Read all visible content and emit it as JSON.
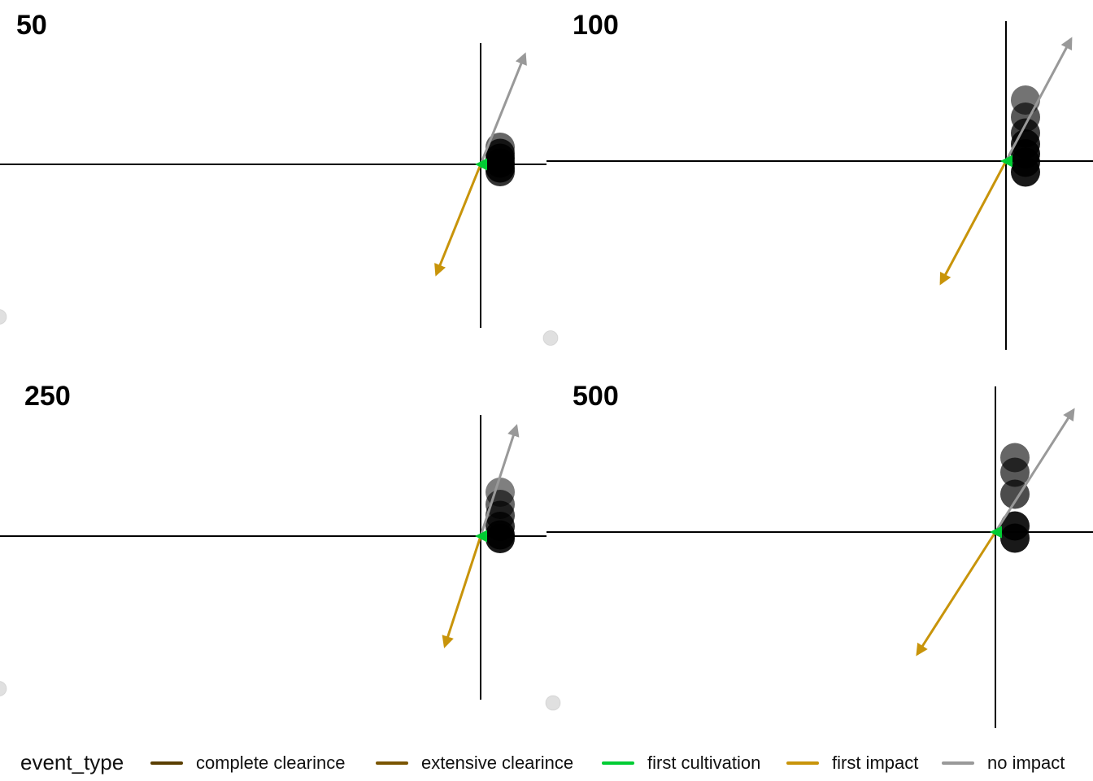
{
  "chart_data": {
    "type": "scatter",
    "panels": [
      {
        "label": "50",
        "points": [
          {
            "x": 0.3,
            "y": 0.28,
            "alpha": 0.6
          },
          {
            "x": 0.3,
            "y": 0.18,
            "alpha": 0.8
          },
          {
            "x": 0.3,
            "y": 0.1,
            "alpha": 0.9
          },
          {
            "x": 0.3,
            "y": 0.02,
            "alpha": 0.9
          },
          {
            "x": 0.3,
            "y": -0.06,
            "alpha": 0.9
          },
          {
            "x": 0.3,
            "y": -0.12,
            "alpha": 0.8
          }
        ],
        "origin_point": {
          "x": -7.4,
          "y": -2.5,
          "alpha": 0.12
        },
        "vectors": [
          {
            "event": "no impact",
            "x": 0.68,
            "y": 1.8
          },
          {
            "event": "first impact",
            "x": -0.68,
            "y": -1.8
          },
          {
            "event": "first cultivation",
            "x": -0.05,
            "y": 0.0
          }
        ]
      },
      {
        "label": "100",
        "points": [
          {
            "x": 0.3,
            "y": 1.0,
            "alpha": 0.55
          },
          {
            "x": 0.3,
            "y": 0.72,
            "alpha": 0.65
          },
          {
            "x": 0.3,
            "y": 0.46,
            "alpha": 0.75
          },
          {
            "x": 0.3,
            "y": 0.28,
            "alpha": 0.85
          },
          {
            "x": 0.3,
            "y": 0.12,
            "alpha": 0.9
          },
          {
            "x": 0.3,
            "y": -0.02,
            "alpha": 0.9
          },
          {
            "x": 0.3,
            "y": -0.18,
            "alpha": 0.9
          }
        ],
        "origin_point": {
          "x": -7.0,
          "y": -2.9,
          "alpha": 0.12
        },
        "vectors": [
          {
            "event": "no impact",
            "x": 1.0,
            "y": 2.0
          },
          {
            "event": "first impact",
            "x": -1.0,
            "y": -2.0
          },
          {
            "event": "first cultivation",
            "x": -0.05,
            "y": 0.0
          }
        ]
      },
      {
        "label": "250",
        "points": [
          {
            "x": 0.3,
            "y": 0.72,
            "alpha": 0.5
          },
          {
            "x": 0.3,
            "y": 0.52,
            "alpha": 0.6
          },
          {
            "x": 0.3,
            "y": 0.34,
            "alpha": 0.7
          },
          {
            "x": 0.3,
            "y": 0.16,
            "alpha": 0.8
          },
          {
            "x": 0.3,
            "y": 0.02,
            "alpha": 0.9
          },
          {
            "x": 0.3,
            "y": -0.04,
            "alpha": 0.9
          }
        ],
        "origin_point": {
          "x": -7.4,
          "y": -2.5,
          "alpha": 0.12
        },
        "vectors": [
          {
            "event": "no impact",
            "x": 0.55,
            "y": 1.8
          },
          {
            "event": "first impact",
            "x": -0.55,
            "y": -1.8
          },
          {
            "event": "first cultivation",
            "x": -0.05,
            "y": 0.0
          }
        ]
      },
      {
        "label": "500",
        "points": [
          {
            "x": 0.3,
            "y": 1.22,
            "alpha": 0.6
          },
          {
            "x": 0.3,
            "y": 0.98,
            "alpha": 0.65
          },
          {
            "x": 0.3,
            "y": 0.62,
            "alpha": 0.7
          },
          {
            "x": 0.3,
            "y": 0.1,
            "alpha": 0.9
          },
          {
            "x": 0.3,
            "y": -0.1,
            "alpha": 0.9
          }
        ],
        "origin_point": {
          "x": -6.8,
          "y": -2.8,
          "alpha": 0.12
        },
        "vectors": [
          {
            "event": "no impact",
            "x": 1.2,
            "y": 2.0
          },
          {
            "event": "first impact",
            "x": -1.2,
            "y": -2.0
          },
          {
            "event": "first cultivation",
            "x": -0.05,
            "y": 0.0
          }
        ]
      }
    ],
    "legend": {
      "title": "event_type",
      "position": "bottom",
      "items": [
        {
          "label": "complete clearince",
          "color": "#5a3e00"
        },
        {
          "label": "extensive clearince",
          "color": "#7a5500"
        },
        {
          "label": "first cultivation",
          "color": "#00cc33"
        },
        {
          "label": "first impact",
          "color": "#c8940a"
        },
        {
          "label": "no impact",
          "color": "#999999"
        }
      ]
    },
    "grid": false,
    "axis_ticks": false
  }
}
